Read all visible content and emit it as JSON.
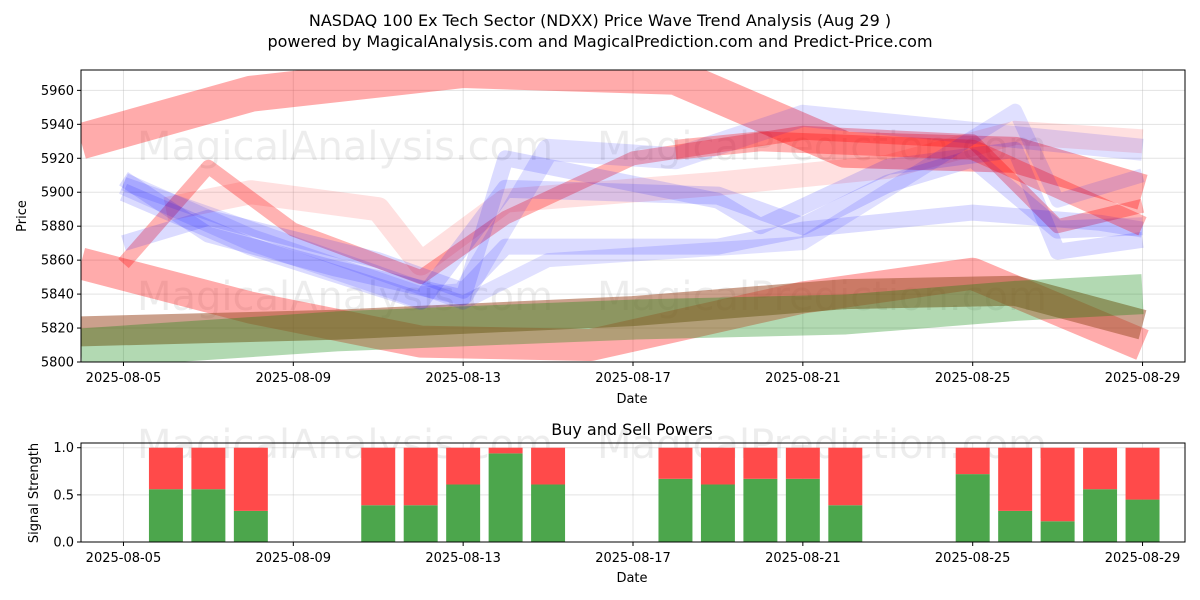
{
  "chart_data": [
    {
      "type": "area",
      "title": "NASDAQ 100 Ex Tech Sector (NDXX) Price Wave Trend Analysis (Aug 29 )",
      "subtitle": "powered by MagicalAnalysis.com and MagicalPrediction.com and Predict-Price.com",
      "xlabel": "Date",
      "ylabel": "Price",
      "xlim": [
        "2025-08-04",
        "2025-08-30"
      ],
      "ylim": [
        5800,
        5972
      ],
      "x_ticks": [
        "2025-08-05",
        "2025-08-09",
        "2025-08-13",
        "2025-08-17",
        "2025-08-21",
        "2025-08-25",
        "2025-08-29"
      ],
      "y_ticks": [
        5800,
        5820,
        5840,
        5860,
        5880,
        5900,
        5920,
        5940,
        5960
      ],
      "grid": true,
      "watermarks": [
        "MagicalAnalysis.com",
        "MagicalPrediction.com"
      ],
      "bands": [
        {
          "color": "#ff0000",
          "opacity": 0.33,
          "width": 36,
          "points": [
            [
              "2025-08-04",
              5930
            ],
            [
              "2025-08-08",
              5958
            ],
            [
              "2025-08-13",
              5972
            ],
            [
              "2025-08-18",
              5968
            ],
            [
              "2025-08-22",
              5925
            ],
            [
              "2025-08-26",
              5922
            ],
            [
              "2025-08-29",
              5900
            ]
          ]
        },
        {
          "color": "#ff0000",
          "opacity": 0.33,
          "width": 32,
          "points": [
            [
              "2025-08-04",
              5858
            ],
            [
              "2025-08-08",
              5832
            ],
            [
              "2025-08-12",
              5812
            ],
            [
              "2025-08-16",
              5810
            ],
            [
              "2025-08-21",
              5838
            ],
            [
              "2025-08-25",
              5852
            ],
            [
              "2025-08-29",
              5810
            ]
          ]
        },
        {
          "color": "#a0522d",
          "opacity": 0.55,
          "width": 30,
          "points": [
            [
              "2025-08-04",
              5818
            ],
            [
              "2025-08-10",
              5822
            ],
            [
              "2025-08-17",
              5830
            ],
            [
              "2025-08-22",
              5840
            ],
            [
              "2025-08-26",
              5842
            ],
            [
              "2025-08-29",
              5822
            ]
          ]
        },
        {
          "color": "#008000",
          "opacity": 0.3,
          "width": 40,
          "points": [
            [
              "2025-08-04",
              5808
            ],
            [
              "2025-08-10",
              5818
            ],
            [
              "2025-08-17",
              5825
            ],
            [
              "2025-08-22",
              5828
            ],
            [
              "2025-08-26",
              5836
            ],
            [
              "2025-08-29",
              5840
            ]
          ]
        },
        {
          "color": "#ff0000",
          "opacity": 0.12,
          "width": 24,
          "points": [
            [
              "2025-08-06",
              5890
            ],
            [
              "2025-08-08",
              5900
            ],
            [
              "2025-08-11",
              5890
            ],
            [
              "2025-08-12",
              5858
            ],
            [
              "2025-08-14",
              5895
            ],
            [
              "2025-08-19",
              5905
            ],
            [
              "2025-08-23",
              5915
            ],
            [
              "2025-08-26",
              5935
            ],
            [
              "2025-08-29",
              5930
            ]
          ]
        },
        {
          "color": "#ff0000",
          "opacity": 0.3,
          "width": 14,
          "points": [
            [
              "2025-08-05",
              5858
            ],
            [
              "2025-08-07",
              5915
            ],
            [
              "2025-08-09",
              5878
            ],
            [
              "2025-08-12",
              5850
            ],
            [
              "2025-08-14",
              5885
            ],
            [
              "2025-08-17",
              5920
            ],
            [
              "2025-08-21",
              5935
            ],
            [
              "2025-08-25",
              5930
            ],
            [
              "2025-08-27",
              5880
            ],
            [
              "2025-08-29",
              5892
            ]
          ]
        },
        {
          "color": "#0000ff",
          "opacity": 0.12,
          "width": 22,
          "points": [
            [
              "2025-08-05",
              5905
            ],
            [
              "2025-08-08",
              5872
            ],
            [
              "2025-08-12",
              5838
            ],
            [
              "2025-08-13",
              5840
            ],
            [
              "2025-08-15",
              5925
            ],
            [
              "2025-08-18",
              5920
            ],
            [
              "2025-08-21",
              5945
            ],
            [
              "2025-08-25",
              5935
            ],
            [
              "2025-08-29",
              5925
            ]
          ]
        },
        {
          "color": "#0000ff",
          "opacity": 0.14,
          "width": 18,
          "points": [
            [
              "2025-08-05",
              5900
            ],
            [
              "2025-08-08",
              5868
            ],
            [
              "2025-08-12",
              5836
            ],
            [
              "2025-08-14",
              5902
            ],
            [
              "2025-08-19",
              5898
            ],
            [
              "2025-08-21",
              5880
            ],
            [
              "2025-08-23",
              5905
            ],
            [
              "2025-08-25",
              5920
            ],
            [
              "2025-08-27",
              5878
            ],
            [
              "2025-08-29",
              5880
            ]
          ]
        },
        {
          "color": "#0000ff",
          "opacity": 0.14,
          "width": 16,
          "points": [
            [
              "2025-08-05",
              5870
            ],
            [
              "2025-08-07",
              5885
            ],
            [
              "2025-08-11",
              5860
            ],
            [
              "2025-08-13",
              5842
            ],
            [
              "2025-08-14",
              5868
            ],
            [
              "2025-08-19",
              5868
            ],
            [
              "2025-08-21",
              5878
            ],
            [
              "2025-08-25",
              5888
            ],
            [
              "2025-08-28",
              5882
            ],
            [
              "2025-08-29",
              5878
            ]
          ]
        },
        {
          "color": "#0000ff",
          "opacity": 0.14,
          "width": 16,
          "points": [
            [
              "2025-08-05",
              5908
            ],
            [
              "2025-08-07",
              5875
            ],
            [
              "2025-08-10",
              5855
            ],
            [
              "2025-08-13",
              5838
            ],
            [
              "2025-08-14",
              5920
            ],
            [
              "2025-08-19",
              5895
            ],
            [
              "2025-08-20",
              5880
            ],
            [
              "2025-08-23",
              5915
            ],
            [
              "2025-08-26",
              5925
            ],
            [
              "2025-08-27",
              5865
            ],
            [
              "2025-08-29",
              5872
            ]
          ]
        },
        {
          "color": "#ff0000",
          "opacity": 0.3,
          "width": 20,
          "points": [
            [
              "2025-08-18",
              5925
            ],
            [
              "2025-08-20",
              5930
            ],
            [
              "2025-08-25",
              5925
            ],
            [
              "2025-08-29",
              5880
            ]
          ]
        },
        {
          "color": "#0000ff",
          "opacity": 0.12,
          "width": 14,
          "points": [
            [
              "2025-08-05",
              5905
            ],
            [
              "2025-08-09",
              5870
            ],
            [
              "2025-08-13",
              5835
            ],
            [
              "2025-08-15",
              5860
            ],
            [
              "2025-08-21",
              5870
            ],
            [
              "2025-08-26",
              5948
            ],
            [
              "2025-08-27",
              5895
            ],
            [
              "2025-08-29",
              5910
            ]
          ]
        }
      ]
    },
    {
      "type": "bar",
      "title": "Buy and Sell Powers",
      "xlabel": "Date",
      "ylabel": "Signal Strength",
      "xlim": [
        "2025-08-04",
        "2025-08-30"
      ],
      "ylim": [
        0,
        1.05
      ],
      "x_ticks": [
        "2025-08-05",
        "2025-08-09",
        "2025-08-13",
        "2025-08-17",
        "2025-08-21",
        "2025-08-25",
        "2025-08-29"
      ],
      "y_ticks": [
        0.0,
        0.5,
        1.0
      ],
      "grid": true,
      "watermarks": [
        "MagicalAnalysis.com",
        "MagicalPrediction.com"
      ],
      "buy_color": "#4ca64c",
      "sell_color": "#ff4a4a",
      "categories": [
        "2025-08-06",
        "2025-08-07",
        "2025-08-08",
        "2025-08-11",
        "2025-08-12",
        "2025-08-13",
        "2025-08-14",
        "2025-08-15",
        "2025-08-18",
        "2025-08-19",
        "2025-08-20",
        "2025-08-21",
        "2025-08-22",
        "2025-08-25",
        "2025-08-26",
        "2025-08-27",
        "2025-08-28",
        "2025-08-29"
      ],
      "series": [
        {
          "name": "Buy",
          "values": [
            0.56,
            0.56,
            0.33,
            0.39,
            0.39,
            0.61,
            0.94,
            0.61,
            0.67,
            0.61,
            0.67,
            0.67,
            0.39,
            0.72,
            0.33,
            0.22,
            0.56,
            0.45
          ]
        },
        {
          "name": "Sell",
          "values": [
            0.44,
            0.44,
            0.67,
            0.61,
            0.61,
            0.39,
            0.06,
            0.39,
            0.33,
            0.39,
            0.33,
            0.33,
            0.61,
            0.28,
            0.67,
            0.78,
            0.44,
            0.55
          ]
        }
      ]
    }
  ]
}
